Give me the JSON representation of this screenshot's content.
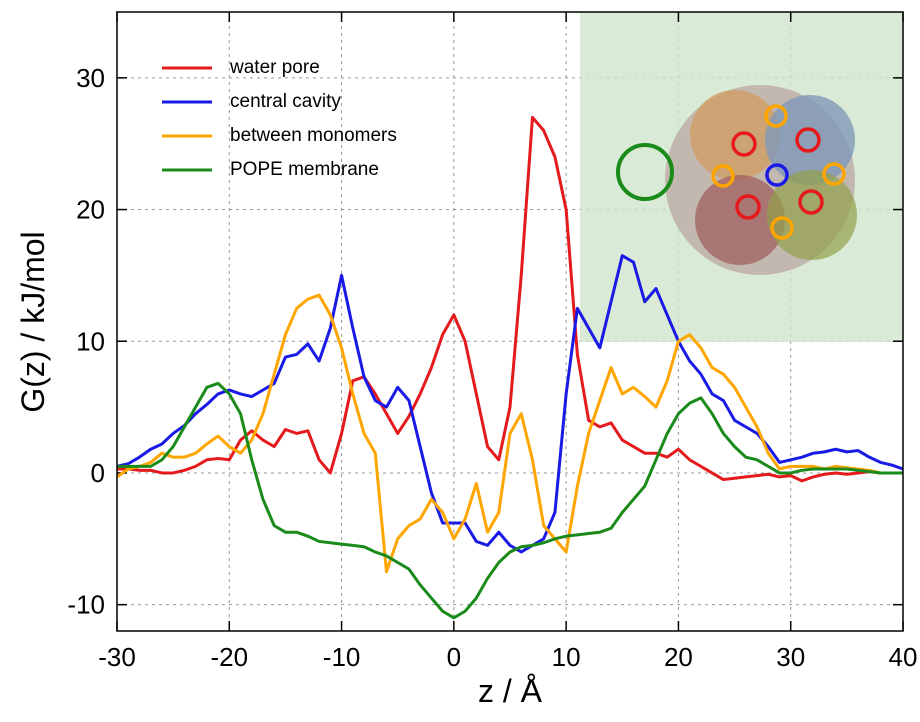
{
  "chart_data": {
    "type": "line",
    "xlabel": "z / Å",
    "ylabel": "G(z) / kJ/mol",
    "x": [
      -30,
      -29,
      -28,
      -27,
      -26,
      -25,
      -24,
      -23,
      -22,
      -21,
      -20,
      -19,
      -18,
      -17,
      -16,
      -15,
      -14,
      -13,
      -12,
      -11,
      -10,
      -9,
      -8,
      -7,
      -6,
      -5,
      -4,
      -3,
      -2,
      -1,
      0,
      1,
      2,
      3,
      4,
      5,
      6,
      7,
      8,
      9,
      10,
      11,
      12,
      13,
      14,
      15,
      16,
      17,
      18,
      19,
      20,
      21,
      22,
      23,
      24,
      25,
      26,
      27,
      28,
      29,
      30,
      31,
      32,
      33,
      34,
      35,
      36,
      37,
      38,
      39,
      40
    ],
    "series": [
      {
        "name": "water pore",
        "color": "#e41a1c",
        "values": [
          0.3,
          0.3,
          0.2,
          0.2,
          0,
          0,
          0.2,
          0.5,
          1,
          1.1,
          1,
          2.5,
          3.2,
          2.5,
          2,
          3.3,
          3,
          3.2,
          1,
          0,
          3,
          7,
          7.3,
          6,
          4.5,
          3,
          4.3,
          6,
          8,
          10.5,
          12,
          10,
          6,
          2,
          1,
          5,
          15,
          27,
          26,
          24,
          20,
          9,
          4,
          3.5,
          3.8,
          2.5,
          2,
          1.5,
          1.5,
          1.2,
          1.8,
          1,
          0.5,
          0,
          -0.5,
          -0.4,
          -0.3,
          -0.2,
          -0.1,
          -0.3,
          -0.2,
          -0.6,
          -0.3,
          -0.1,
          0,
          -0.1,
          0,
          0.1,
          0,
          0,
          0
        ]
      },
      {
        "name": "central cavity",
        "color": "#1a1ae6",
        "values": [
          0.5,
          0.7,
          1.2,
          1.8,
          2.2,
          3,
          3.6,
          4.5,
          5.2,
          6,
          6.3,
          6,
          5.8,
          6.3,
          6.8,
          8.8,
          9,
          9.8,
          8.5,
          11,
          15,
          11,
          7.3,
          5.5,
          5,
          6.5,
          5.5,
          2,
          -1.5,
          -3.8,
          -3.8,
          -3.8,
          -5.2,
          -5.5,
          -4.5,
          -5.5,
          -6,
          -5.5,
          -5,
          -3,
          6,
          12.5,
          11,
          9.5,
          13,
          16.5,
          16,
          13,
          14,
          12,
          10,
          8.5,
          7.5,
          6,
          5.5,
          4,
          3.5,
          3,
          2,
          0.8,
          1,
          1.2,
          1.5,
          1.6,
          1.8,
          1.6,
          1.7,
          1.2,
          0.8,
          0.6,
          0.3
        ]
      },
      {
        "name": "between monomers",
        "color": "#ffa500",
        "values": [
          -0.3,
          0.3,
          0.5,
          0.8,
          1.5,
          1.2,
          1.2,
          1.5,
          2.2,
          2.8,
          2,
          1.5,
          2.5,
          4.5,
          7.5,
          10.5,
          12.5,
          13.2,
          13.5,
          12,
          9.5,
          6,
          3,
          1.5,
          -7.5,
          -5,
          -4,
          -3.5,
          -2,
          -3,
          -5,
          -3.5,
          -0.8,
          -4.5,
          -3,
          3,
          4.5,
          1,
          -4,
          -5,
          -6,
          -1,
          3,
          5.5,
          8,
          6,
          6.5,
          5.8,
          5,
          7,
          10,
          10.5,
          9.5,
          8,
          7.5,
          6.5,
          5,
          3.5,
          1.5,
          0.3,
          0.5,
          0.5,
          0.5,
          0.3,
          0.5,
          0.4,
          0.3,
          0.2,
          0,
          0,
          0
        ]
      },
      {
        "name": "POPE membrane",
        "color": "#1a8a1a",
        "values": [
          0.5,
          0.5,
          0.5,
          0.5,
          1,
          2,
          3.5,
          5,
          6.5,
          6.8,
          6,
          4.5,
          1,
          -2,
          -4,
          -4.5,
          -4.5,
          -4.8,
          -5.2,
          -5.3,
          -5.4,
          -5.5,
          -5.6,
          -6,
          -6.3,
          -6.8,
          -7.3,
          -8.5,
          -9.5,
          -10.5,
          -11,
          -10.5,
          -9.5,
          -8,
          -6.8,
          -6,
          -5.6,
          -5.5,
          -5.3,
          -5,
          -4.8,
          -4.7,
          -4.6,
          -4.5,
          -4.2,
          -3,
          -2,
          -1,
          1,
          3,
          4.5,
          5.3,
          5.7,
          4.5,
          3,
          2,
          1.2,
          1,
          0.5,
          0,
          0,
          0.2,
          0.3,
          0.3,
          0.3,
          0.3,
          0.2,
          0.1,
          0,
          0,
          0
        ]
      }
    ],
    "xlim": [
      -30,
      40
    ],
    "xticks": [
      -30,
      -20,
      -10,
      0,
      10,
      20,
      30,
      40
    ],
    "ylim": [
      -12,
      35
    ],
    "yticks": [
      -10,
      0,
      10,
      20,
      30
    ],
    "grid": true,
    "legend": "upper left"
  }
}
